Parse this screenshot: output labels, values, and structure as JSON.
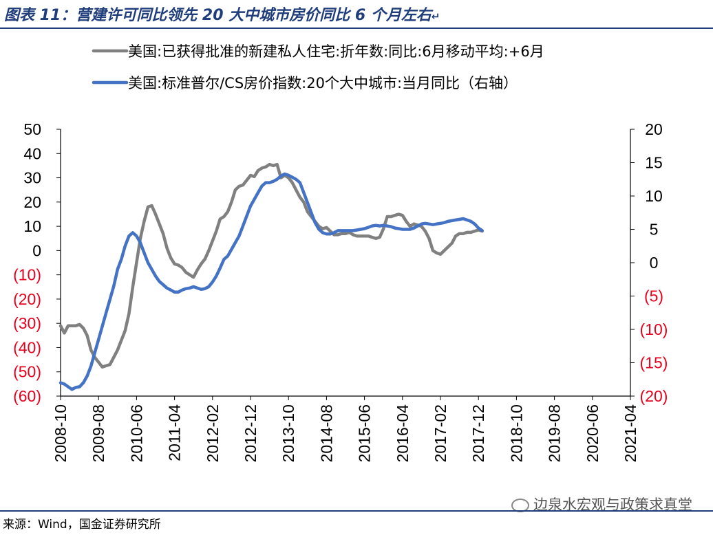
{
  "title": "图表 11：营建许可同比领先 20 大中城市房价同比 6 个月左右",
  "enter_mark": "↵",
  "source": "来源：Wind，国金证券研究所",
  "watermark": "边泉水宏观与政策求真堂",
  "watermark_icon": "wechat-icon",
  "chart_data": {
    "type": "line",
    "legend_position": "top",
    "grid": false,
    "x_tick_labels": [
      "2008-10",
      "2009-08",
      "2010-06",
      "2011-04",
      "2012-02",
      "2012-12",
      "2013-10",
      "2014-08",
      "2015-06",
      "2016-04",
      "2017-02",
      "2017-12",
      "2018-10",
      "2019-08",
      "2020-06",
      "2021-04"
    ],
    "y_left": {
      "min": -60,
      "max": 50,
      "step": 10,
      "tick_labels": [
        "50",
        "40",
        "30",
        "20",
        "10",
        "0",
        "(10)",
        "(20)",
        "(30)",
        "(40)",
        "(50)",
        "(60)"
      ]
    },
    "y_right": {
      "min": -20,
      "max": 20,
      "step": 5,
      "tick_labels": [
        "20",
        "15",
        "10",
        "5",
        "0",
        "(5)",
        "(10)",
        "(15)",
        "(20)"
      ]
    },
    "negative_tick_color": "#e8001c",
    "series": [
      {
        "name": "美国:已获得批准的新建私人住宅:折年数:同比:6月移动平均:+6月",
        "axis": "left",
        "color": "#808080",
        "points": [
          [
            "2008-10",
            -31
          ],
          [
            "2008-11",
            -34
          ],
          [
            "2008-12",
            -31
          ],
          [
            "2009-01",
            -31
          ],
          [
            "2009-02",
            -31
          ],
          [
            "2009-03",
            -30.5
          ],
          [
            "2009-04",
            -32
          ],
          [
            "2009-05",
            -35
          ],
          [
            "2009-06",
            -41
          ],
          [
            "2009-07",
            -44
          ],
          [
            "2009-08",
            -46
          ],
          [
            "2009-09",
            -48
          ],
          [
            "2009-10",
            -47.5
          ],
          [
            "2009-11",
            -47
          ],
          [
            "2009-12",
            -44
          ],
          [
            "2010-01",
            -41
          ],
          [
            "2010-02",
            -37
          ],
          [
            "2010-03",
            -33
          ],
          [
            "2010-04",
            -26
          ],
          [
            "2010-05",
            -15
          ],
          [
            "2010-06",
            -5
          ],
          [
            "2010-07",
            5
          ],
          [
            "2010-08",
            12
          ],
          [
            "2010-09",
            18
          ],
          [
            "2010-10",
            18.5
          ],
          [
            "2010-11",
            15
          ],
          [
            "2010-12",
            11
          ],
          [
            "2011-01",
            7
          ],
          [
            "2011-02",
            1
          ],
          [
            "2011-03",
            -3
          ],
          [
            "2011-04",
            -5.5
          ],
          [
            "2011-05",
            -6
          ],
          [
            "2011-06",
            -7
          ],
          [
            "2011-07",
            -9
          ],
          [
            "2011-08",
            -10
          ],
          [
            "2011-09",
            -11
          ],
          [
            "2011-10",
            -8
          ],
          [
            "2011-11",
            -5.5
          ],
          [
            "2011-12",
            -3.5
          ],
          [
            "2012-01",
            0
          ],
          [
            "2012-02",
            4
          ],
          [
            "2012-03",
            8
          ],
          [
            "2012-04",
            13
          ],
          [
            "2012-05",
            14
          ],
          [
            "2012-06",
            16
          ],
          [
            "2012-07",
            20
          ],
          [
            "2012-08",
            25
          ],
          [
            "2012-09",
            26.5
          ],
          [
            "2012-10",
            27
          ],
          [
            "2012-11",
            29
          ],
          [
            "2012-12",
            31
          ],
          [
            "2013-01",
            30.5
          ],
          [
            "2013-02",
            33
          ],
          [
            "2013-03",
            34
          ],
          [
            "2013-04",
            34.5
          ],
          [
            "2013-05",
            35.5
          ],
          [
            "2013-06",
            35
          ],
          [
            "2013-07",
            35.5
          ],
          [
            "2013-08",
            30
          ],
          [
            "2013-09",
            31
          ],
          [
            "2013-10",
            30
          ],
          [
            "2013-11",
            28
          ],
          [
            "2013-12",
            25
          ],
          [
            "2014-01",
            22
          ],
          [
            "2014-02",
            20
          ],
          [
            "2014-03",
            16
          ],
          [
            "2014-04",
            14
          ],
          [
            "2014-05",
            12
          ],
          [
            "2014-06",
            10
          ],
          [
            "2014-07",
            9
          ],
          [
            "2014-08",
            9.5
          ],
          [
            "2014-09",
            8
          ],
          [
            "2014-10",
            6.5
          ],
          [
            "2014-11",
            6.5
          ],
          [
            "2014-12",
            7
          ],
          [
            "2015-01",
            7
          ],
          [
            "2015-02",
            7.5
          ],
          [
            "2015-03",
            6.5
          ],
          [
            "2015-04",
            6
          ],
          [
            "2015-05",
            6
          ],
          [
            "2015-06",
            6
          ],
          [
            "2015-07",
            6
          ],
          [
            "2015-08",
            5.5
          ],
          [
            "2015-09",
            5
          ],
          [
            "2015-10",
            5.5
          ],
          [
            "2015-11",
            9
          ],
          [
            "2015-12",
            14
          ],
          [
            "2016-01",
            14
          ],
          [
            "2016-02",
            14.5
          ],
          [
            "2016-03",
            15
          ],
          [
            "2016-04",
            14.5
          ],
          [
            "2016-05",
            12
          ],
          [
            "2016-06",
            10
          ],
          [
            "2016-07",
            11
          ],
          [
            "2016-08",
            10.5
          ],
          [
            "2016-09",
            10
          ],
          [
            "2016-10",
            8
          ],
          [
            "2016-11",
            5
          ],
          [
            "2016-12",
            0
          ],
          [
            "2017-01",
            -1
          ],
          [
            "2017-02",
            -1.5
          ],
          [
            "2017-03",
            0
          ],
          [
            "2017-04",
            1.5
          ],
          [
            "2017-05",
            3
          ],
          [
            "2017-06",
            6
          ],
          [
            "2017-07",
            7
          ],
          [
            "2017-08",
            7
          ],
          [
            "2017-09",
            7.5
          ],
          [
            "2017-10",
            7.5
          ],
          [
            "2017-11",
            8
          ],
          [
            "2017-12",
            8.5
          ],
          [
            "2017-13",
            8
          ]
        ]
      },
      {
        "name": "美国:标准普尔/CS房价指数:20个大中城市:当月同比（右轴）",
        "axis": "right",
        "color": "#4472c4",
        "points": [
          [
            "2008-10",
            -18
          ],
          [
            "2008-11",
            -18.2
          ],
          [
            "2008-12",
            -18.6
          ],
          [
            "2009-01",
            -19
          ],
          [
            "2009-02",
            -18.7
          ],
          [
            "2009-03",
            -18.6
          ],
          [
            "2009-04",
            -18
          ],
          [
            "2009-05",
            -17
          ],
          [
            "2009-06",
            -15.5
          ],
          [
            "2009-07",
            -13.5
          ],
          [
            "2009-08",
            -11.5
          ],
          [
            "2009-09",
            -9.5
          ],
          [
            "2009-10",
            -7.5
          ],
          [
            "2009-11",
            -5.5
          ],
          [
            "2009-12",
            -3.5
          ],
          [
            "2010-01",
            -1
          ],
          [
            "2010-02",
            0.5
          ],
          [
            "2010-03",
            2.5
          ],
          [
            "2010-04",
            4
          ],
          [
            "2010-05",
            4.5
          ],
          [
            "2010-06",
            4
          ],
          [
            "2010-07",
            3
          ],
          [
            "2010-08",
            1.5
          ],
          [
            "2010-09",
            0
          ],
          [
            "2010-10",
            -1
          ],
          [
            "2010-11",
            -2
          ],
          [
            "2010-12",
            -2.8
          ],
          [
            "2011-01",
            -3.3
          ],
          [
            "2011-02",
            -3.8
          ],
          [
            "2011-03",
            -4.1
          ],
          [
            "2011-04",
            -4.4
          ],
          [
            "2011-05",
            -4.4
          ],
          [
            "2011-06",
            -4.1
          ],
          [
            "2011-07",
            -3.9
          ],
          [
            "2011-08",
            -3.8
          ],
          [
            "2011-09",
            -3.6
          ],
          [
            "2011-10",
            -3.8
          ],
          [
            "2011-11",
            -4
          ],
          [
            "2011-12",
            -3.9
          ],
          [
            "2012-01",
            -3.6
          ],
          [
            "2012-02",
            -2.9
          ],
          [
            "2012-03",
            -2
          ],
          [
            "2012-04",
            -0.8
          ],
          [
            "2012-05",
            0.5
          ],
          [
            "2012-06",
            1
          ],
          [
            "2012-07",
            2
          ],
          [
            "2012-08",
            3
          ],
          [
            "2012-09",
            4
          ],
          [
            "2012-10",
            5.5
          ],
          [
            "2012-11",
            7
          ],
          [
            "2012-12",
            8.5
          ],
          [
            "2013-01",
            9.5
          ],
          [
            "2013-02",
            10.5
          ],
          [
            "2013-03",
            11.5
          ],
          [
            "2013-04",
            12
          ],
          [
            "2013-05",
            12
          ],
          [
            "2013-06",
            12.2
          ],
          [
            "2013-07",
            12.5
          ],
          [
            "2013-08",
            13
          ],
          [
            "2013-09",
            13.3
          ],
          [
            "2013-10",
            13.1
          ],
          [
            "2013-11",
            12.8
          ],
          [
            "2013-12",
            12.5
          ],
          [
            "2014-01",
            12
          ],
          [
            "2014-02",
            10.5
          ],
          [
            "2014-03",
            9
          ],
          [
            "2014-04",
            7.5
          ],
          [
            "2014-05",
            6
          ],
          [
            "2014-06",
            5
          ],
          [
            "2014-07",
            4.5
          ],
          [
            "2014-08",
            4.3
          ],
          [
            "2014-09",
            4.3
          ],
          [
            "2014-10",
            4.5
          ],
          [
            "2014-11",
            4.8
          ],
          [
            "2014-12",
            4.8
          ],
          [
            "2015-01",
            4.8
          ],
          [
            "2015-02",
            4.8
          ],
          [
            "2015-03",
            4.8
          ],
          [
            "2015-04",
            4.9
          ],
          [
            "2015-05",
            5
          ],
          [
            "2015-06",
            5.1
          ],
          [
            "2015-07",
            5.3
          ],
          [
            "2015-08",
            5.5
          ],
          [
            "2015-09",
            5.6
          ],
          [
            "2015-10",
            5.5
          ],
          [
            "2015-11",
            5.6
          ],
          [
            "2015-12",
            5.5
          ],
          [
            "2016-01",
            5.4
          ],
          [
            "2016-02",
            5.2
          ],
          [
            "2016-03",
            5.1
          ],
          [
            "2016-04",
            5
          ],
          [
            "2016-05",
            5
          ],
          [
            "2016-06",
            5
          ],
          [
            "2016-07",
            5.2
          ],
          [
            "2016-08",
            5.5
          ],
          [
            "2016-09",
            5.8
          ],
          [
            "2016-10",
            5.9
          ],
          [
            "2016-11",
            5.8
          ],
          [
            "2016-12",
            5.7
          ],
          [
            "2017-01",
            5.8
          ],
          [
            "2017-02",
            5.9
          ],
          [
            "2017-03",
            6
          ],
          [
            "2017-04",
            6.2
          ],
          [
            "2017-05",
            6.3
          ],
          [
            "2017-06",
            6.4
          ],
          [
            "2017-07",
            6.5
          ],
          [
            "2017-08",
            6.6
          ],
          [
            "2017-09",
            6.4
          ],
          [
            "2017-10",
            6.2
          ],
          [
            "2017-11",
            5.8
          ],
          [
            "2017-12",
            5.2
          ],
          [
            "2017-13",
            4.8
          ]
        ]
      }
    ]
  }
}
